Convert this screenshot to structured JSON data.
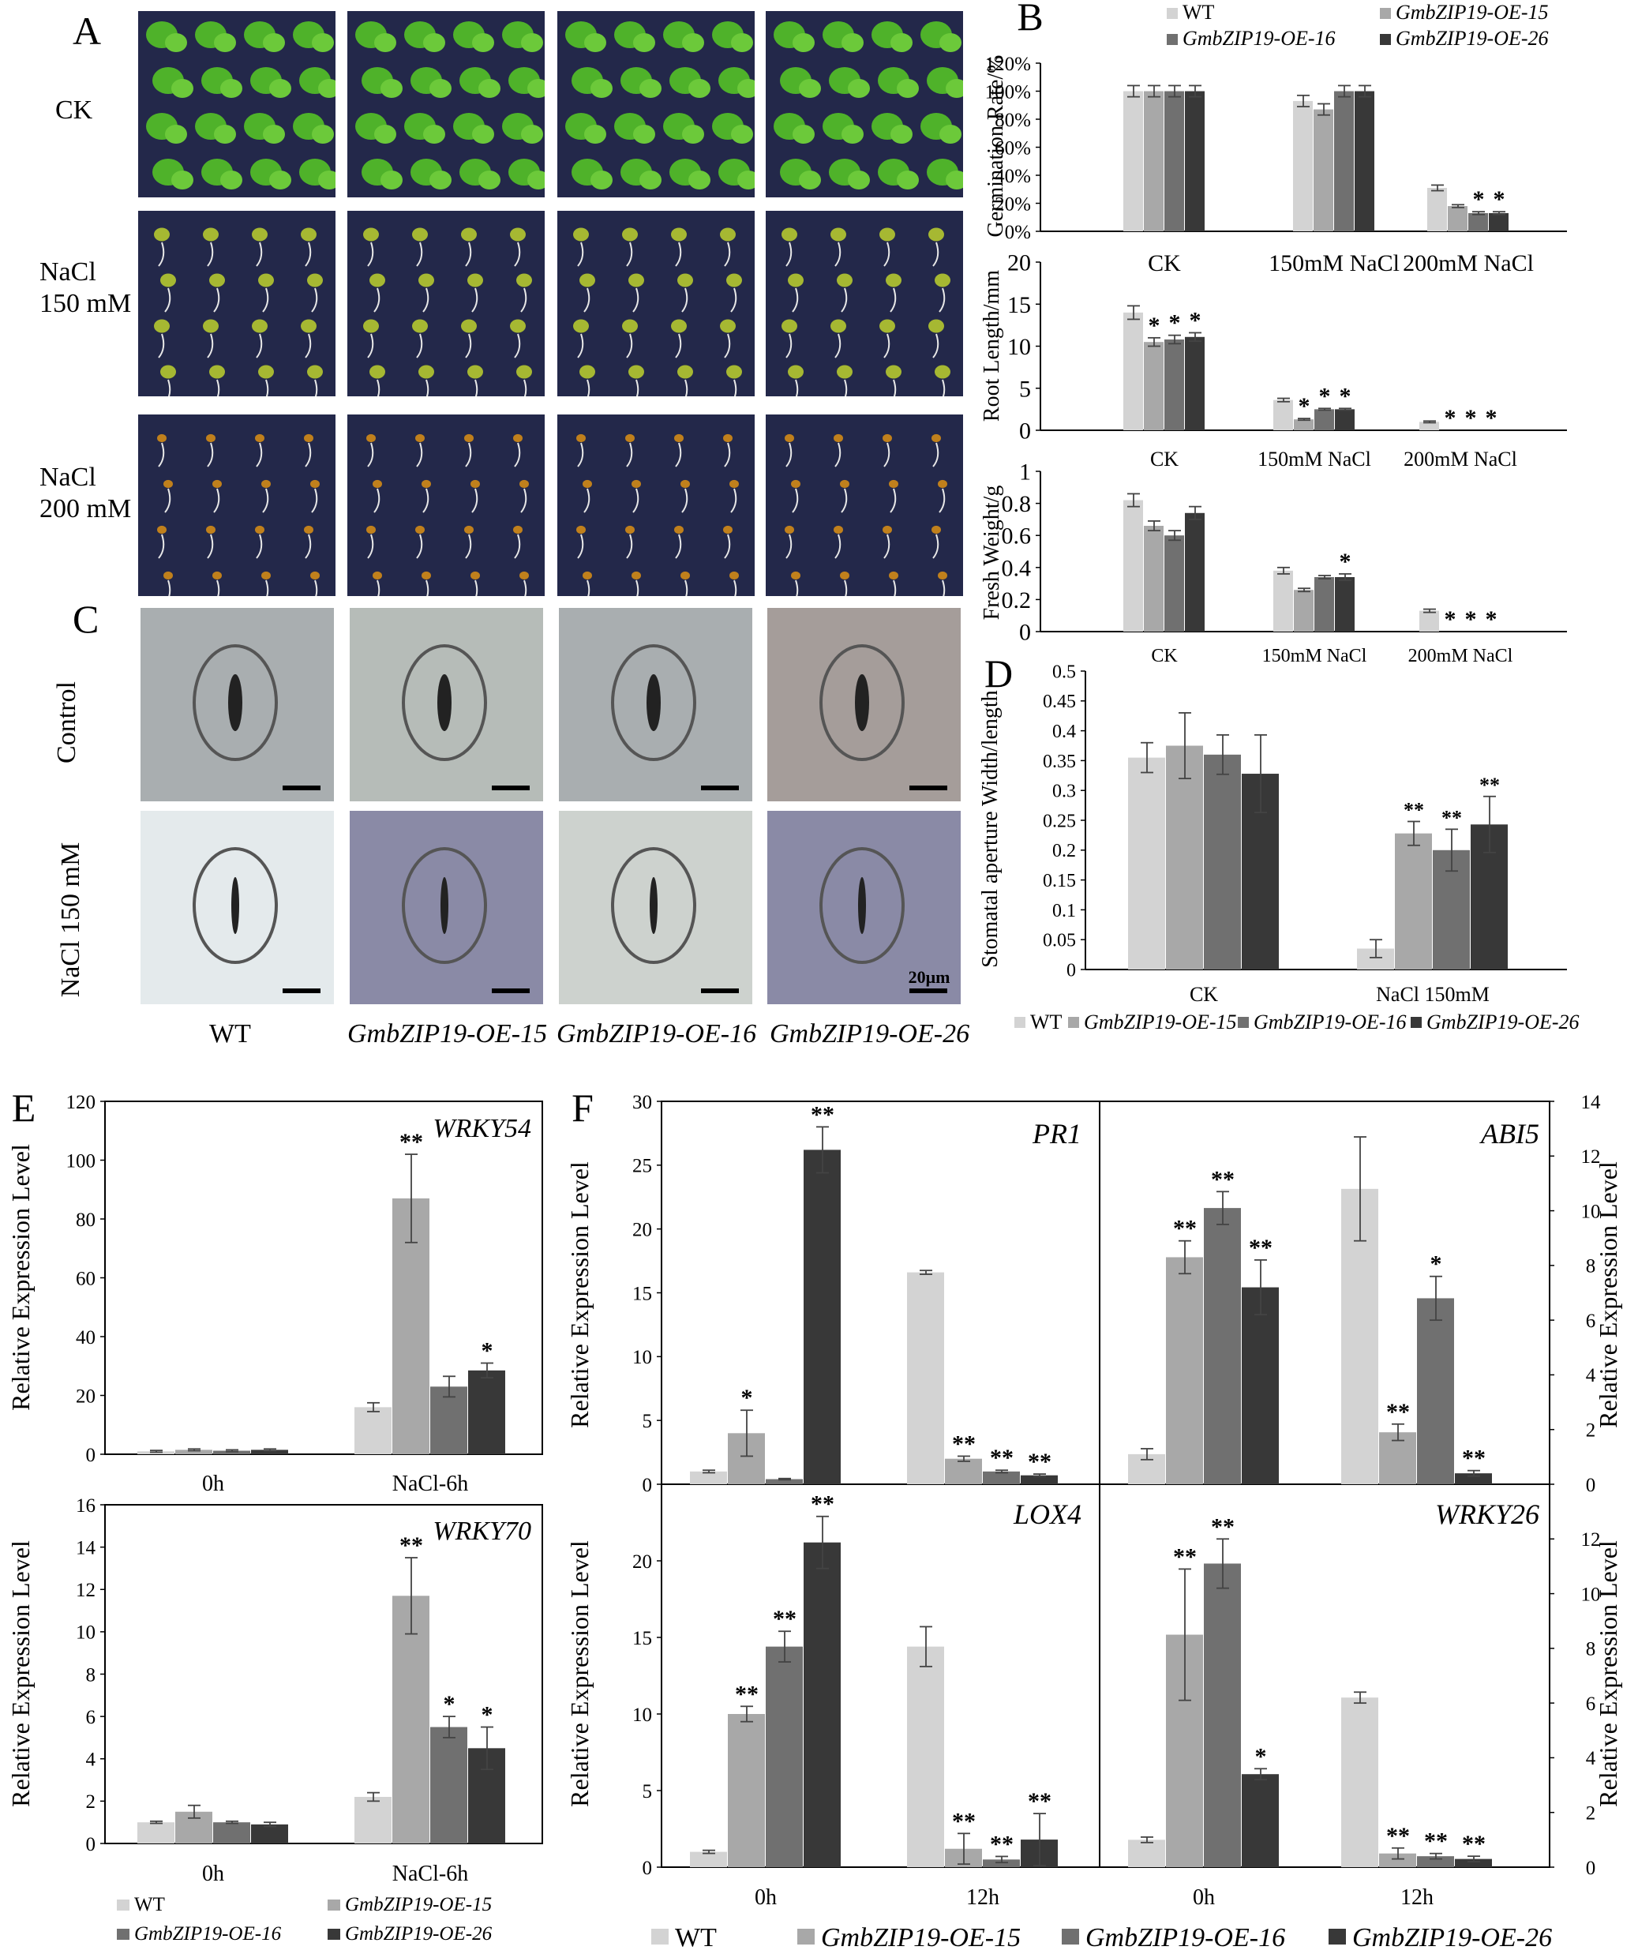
{
  "colors": {
    "wt": "#d3d3d3",
    "oe15": "#a8a8a8",
    "oe16": "#707070",
    "oe26": "#383838",
    "seedbg": "#23284a",
    "stomabg": "#a9aeb0",
    "stomabg2": "#a59d9a",
    "stomabg3": "#8a8aa6",
    "stomabg4": "#e4eaec"
  },
  "panelA": {
    "label": "A",
    "rows": [
      "CK",
      "NaCl\n150 mM",
      "NaCl\n200 mM"
    ]
  },
  "panelC": {
    "label": "C",
    "rows": [
      "Control",
      "NaCl 150 mM"
    ],
    "scalebar": "20μm",
    "cols": [
      "WT",
      "GmbZIP19-OE-15",
      "GmbZIP19-OE-16",
      "GmbZIP19-OE-26"
    ]
  },
  "legendB": {
    "label": "B",
    "items": [
      "WT",
      "GmbZIP19-OE-15",
      "GmbZIP19-OE-16",
      "GmbZIP19-OE-26"
    ]
  },
  "legendD": {
    "items": [
      "WT",
      "GmbZIP19-OE-15",
      "GmbZIP19-OE-16",
      "GmbZIP19-OE-26"
    ]
  },
  "legendE": {
    "items": [
      "WT",
      "GmbZIP19-OE-15",
      "GmbZIP19-OE-16",
      "GmbZIP19-OE-26"
    ]
  },
  "legendF": {
    "items": [
      "WT",
      "GmbZIP19-OE-15",
      "GmbZIP19-OE-16",
      "GmbZIP19-OE-26"
    ]
  },
  "chart_data": [
    {
      "id": "germ",
      "type": "bar",
      "ylabel": "Germination Rate/%",
      "ylim": [
        0,
        120
      ],
      "percent": true,
      "yticks": [
        0,
        20,
        40,
        60,
        80,
        100,
        120
      ],
      "categories": [
        "CK",
        "150mM NaCl",
        "200mM NaCl"
      ],
      "series": [
        {
          "name": "WT",
          "values": [
            100,
            93,
            31
          ],
          "err": [
            4,
            4,
            2
          ],
          "sig": [
            "",
            "",
            ""
          ]
        },
        {
          "name": "GmbZIP19-OE-15",
          "values": [
            100,
            87,
            18
          ],
          "err": [
            4,
            4,
            1
          ],
          "sig": [
            "",
            "",
            ""
          ]
        },
        {
          "name": "GmbZIP19-OE-16",
          "values": [
            100,
            100,
            13
          ],
          "err": [
            4,
            4,
            1
          ],
          "sig": [
            "",
            "",
            "*"
          ]
        },
        {
          "name": "GmbZIP19-OE-26",
          "values": [
            100,
            100,
            13
          ],
          "err": [
            4,
            4,
            1
          ],
          "sig": [
            "",
            "",
            "*"
          ]
        }
      ]
    },
    {
      "id": "root",
      "type": "bar",
      "ylabel": "Root Length/mm",
      "ylim": [
        0,
        20
      ],
      "yticks": [
        0,
        5,
        10,
        15,
        20
      ],
      "categories": [
        "CK",
        "150mM NaCl",
        "200mM NaCl"
      ],
      "series": [
        {
          "name": "WT",
          "values": [
            14,
            3.6,
            1
          ],
          "err": [
            0.8,
            0.2,
            0.1
          ],
          "sig": [
            "",
            "",
            ""
          ]
        },
        {
          "name": "GmbZIP19-OE-15",
          "values": [
            10.5,
            1.3,
            0
          ],
          "err": [
            0.5,
            0.1,
            0
          ],
          "sig": [
            "*",
            "*",
            "*"
          ]
        },
        {
          "name": "GmbZIP19-OE-16",
          "values": [
            10.8,
            2.5,
            0
          ],
          "err": [
            0.5,
            0.1,
            0
          ],
          "sig": [
            "*",
            "*",
            "*"
          ]
        },
        {
          "name": "GmbZIP19-OE-26",
          "values": [
            11.1,
            2.5,
            0
          ],
          "err": [
            0.5,
            0.1,
            0
          ],
          "sig": [
            "*",
            "*",
            "*"
          ]
        }
      ]
    },
    {
      "id": "fw",
      "type": "bar",
      "ylabel": "Fresh Weight/g",
      "ylim": [
        0,
        1
      ],
      "yticks": [
        0,
        0.2,
        0.4,
        0.6,
        0.8,
        1
      ],
      "categories": [
        "CK",
        "150mM NaCl",
        "200mM NaCl"
      ],
      "series": [
        {
          "name": "WT",
          "values": [
            0.82,
            0.38,
            0.13
          ],
          "err": [
            0.04,
            0.02,
            0.01
          ],
          "sig": [
            "",
            "",
            ""
          ]
        },
        {
          "name": "GmbZIP19-OE-15",
          "values": [
            0.66,
            0.26,
            0
          ],
          "err": [
            0.03,
            0.01,
            0
          ],
          "sig": [
            "",
            "",
            "*"
          ]
        },
        {
          "name": "GmbZIP19-OE-16",
          "values": [
            0.6,
            0.34,
            0
          ],
          "err": [
            0.03,
            0.01,
            0
          ],
          "sig": [
            "",
            "",
            "*"
          ]
        },
        {
          "name": "GmbZIP19-OE-26",
          "values": [
            0.74,
            0.34,
            0
          ],
          "err": [
            0.04,
            0.02,
            0
          ],
          "sig": [
            "",
            "*",
            "*"
          ]
        }
      ]
    },
    {
      "id": "stoma",
      "type": "bar",
      "label": "D",
      "ylabel": "Stomatal aperture Width/length",
      "ylim": [
        0,
        0.5
      ],
      "yticks": [
        0,
        0.05,
        0.1,
        0.15,
        0.2,
        0.25,
        0.3,
        0.35,
        0.4,
        0.45,
        0.5
      ],
      "categories": [
        "CK",
        "NaCl 150mM"
      ],
      "series": [
        {
          "name": "WT",
          "values": [
            0.355,
            0.035
          ],
          "err": [
            0.025,
            0.015
          ],
          "sig": [
            "",
            ""
          ]
        },
        {
          "name": "GmbZIP19-OE-15",
          "values": [
            0.375,
            0.228
          ],
          "err": [
            0.055,
            0.02
          ],
          "sig": [
            "",
            "**"
          ]
        },
        {
          "name": "GmbZIP19-OE-16",
          "values": [
            0.36,
            0.2
          ],
          "err": [
            0.033,
            0.035
          ],
          "sig": [
            "",
            "**"
          ]
        },
        {
          "name": "GmbZIP19-OE-26",
          "values": [
            0.328,
            0.243
          ],
          "err": [
            0.065,
            0.047
          ],
          "sig": [
            "",
            "**"
          ]
        }
      ]
    },
    {
      "id": "wrky54",
      "type": "bar",
      "label": "E",
      "title": "WRKY54",
      "ylabel": "Relative Expression Level",
      "ylim": [
        0,
        120
      ],
      "yticks": [
        0,
        20,
        40,
        60,
        80,
        100,
        120
      ],
      "categories": [
        "0h",
        "NaCl-6h"
      ],
      "series": [
        {
          "name": "WT",
          "values": [
            1,
            16
          ],
          "err": [
            0.3,
            1.5
          ],
          "sig": [
            "",
            ""
          ]
        },
        {
          "name": "GmbZIP19-OE-15",
          "values": [
            1.5,
            87
          ],
          "err": [
            0.3,
            15
          ],
          "sig": [
            "",
            "**"
          ]
        },
        {
          "name": "GmbZIP19-OE-16",
          "values": [
            1.2,
            23
          ],
          "err": [
            0.3,
            3.5
          ],
          "sig": [
            "",
            ""
          ]
        },
        {
          "name": "GmbZIP19-OE-26",
          "values": [
            1.5,
            28.5
          ],
          "err": [
            0.3,
            2.5
          ],
          "sig": [
            "",
            "*"
          ]
        }
      ]
    },
    {
      "id": "wrky70",
      "type": "bar",
      "title": "WRKY70",
      "ylabel": "Relative Expression Level",
      "ylim": [
        0,
        16
      ],
      "yticks": [
        0,
        2,
        4,
        6,
        8,
        10,
        12,
        14,
        16
      ],
      "categories": [
        "0h",
        "NaCl-6h"
      ],
      "series": [
        {
          "name": "WT",
          "values": [
            1,
            2.2
          ],
          "err": [
            0.05,
            0.2
          ],
          "sig": [
            "",
            ""
          ]
        },
        {
          "name": "GmbZIP19-OE-15",
          "values": [
            1.5,
            11.7
          ],
          "err": [
            0.3,
            1.8
          ],
          "sig": [
            "",
            "**"
          ]
        },
        {
          "name": "GmbZIP19-OE-16",
          "values": [
            1,
            5.5
          ],
          "err": [
            0.05,
            0.5
          ],
          "sig": [
            "",
            "*"
          ]
        },
        {
          "name": "GmbZIP19-OE-26",
          "values": [
            0.9,
            4.5
          ],
          "err": [
            0.1,
            1
          ],
          "sig": [
            "",
            "*"
          ]
        }
      ]
    },
    {
      "id": "pr1",
      "type": "bar",
      "label": "F",
      "title": "PR1",
      "ylabel": "Relative Expression Level",
      "ylim": [
        0,
        30
      ],
      "yticks": [
        0,
        5,
        10,
        15,
        20,
        25,
        30
      ],
      "categories": [
        "0h",
        "12h"
      ],
      "series": [
        {
          "name": "WT",
          "values": [
            1,
            16.6
          ],
          "err": [
            0.1,
            0.15
          ],
          "sig": [
            "",
            ""
          ]
        },
        {
          "name": "GmbZIP19-OE-15",
          "values": [
            4,
            2
          ],
          "err": [
            1.8,
            0.2
          ],
          "sig": [
            "*",
            "**"
          ]
        },
        {
          "name": "GmbZIP19-OE-16",
          "values": [
            0.4,
            1
          ],
          "err": [
            0.05,
            0.1
          ],
          "sig": [
            "",
            "**"
          ]
        },
        {
          "name": "GmbZIP19-OE-26",
          "values": [
            26.2,
            0.7
          ],
          "err": [
            1.8,
            0.1
          ],
          "sig": [
            "**",
            "**"
          ]
        }
      ]
    },
    {
      "id": "abi5",
      "type": "bar",
      "title": "ABI5",
      "ylabel": "Relative Expression Level",
      "ylim": [
        0,
        14
      ],
      "yticks": [
        0,
        2,
        4,
        6,
        8,
        10,
        12,
        14
      ],
      "categories": [
        "0h",
        "12h"
      ],
      "series": [
        {
          "name": "WT",
          "values": [
            1.1,
            10.8
          ],
          "err": [
            0.2,
            1.9
          ],
          "sig": [
            "",
            ""
          ]
        },
        {
          "name": "GmbZIP19-OE-15",
          "values": [
            8.3,
            1.9
          ],
          "err": [
            0.6,
            0.3
          ],
          "sig": [
            "**",
            "**"
          ]
        },
        {
          "name": "GmbZIP19-OE-16",
          "values": [
            10.1,
            6.8
          ],
          "err": [
            0.6,
            0.8
          ],
          "sig": [
            "**",
            "*"
          ]
        },
        {
          "name": "GmbZIP19-OE-26",
          "values": [
            7.2,
            0.4
          ],
          "err": [
            1,
            0.1
          ],
          "sig": [
            "**",
            "**"
          ]
        }
      ]
    },
    {
      "id": "lox4",
      "type": "bar",
      "title": "LOX4",
      "ylabel": "Relative Expression Level",
      "ylim": [
        0,
        25
      ],
      "yticks": [
        0,
        5,
        10,
        15,
        20
      ],
      "categories": [
        "0h",
        "12h"
      ],
      "series": [
        {
          "name": "WT",
          "values": [
            1,
            14.4
          ],
          "err": [
            0.1,
            1.3
          ],
          "sig": [
            "",
            ""
          ]
        },
        {
          "name": "GmbZIP19-OE-15",
          "values": [
            10,
            1.2
          ],
          "err": [
            0.5,
            1
          ],
          "sig": [
            "**",
            "**"
          ]
        },
        {
          "name": "GmbZIP19-OE-16",
          "values": [
            14.4,
            0.5
          ],
          "err": [
            1,
            0.2
          ],
          "sig": [
            "**",
            "**"
          ]
        },
        {
          "name": "GmbZIP19-OE-26",
          "values": [
            21.2,
            1.8
          ],
          "err": [
            1.7,
            1.7
          ],
          "sig": [
            "**",
            "**"
          ]
        }
      ]
    },
    {
      "id": "wrky26",
      "type": "bar",
      "title": "WRKY26",
      "ylabel": "Relative Expression Level",
      "ylim": [
        0,
        14
      ],
      "yticks": [
        0,
        2,
        4,
        6,
        8,
        10,
        12
      ],
      "categories": [
        "0h",
        "12h"
      ],
      "series": [
        {
          "name": "WT",
          "values": [
            1,
            6.2
          ],
          "err": [
            0.1,
            0.2
          ],
          "sig": [
            "",
            ""
          ]
        },
        {
          "name": "GmbZIP19-OE-15",
          "values": [
            8.5,
            0.5
          ],
          "err": [
            2.4,
            0.2
          ],
          "sig": [
            "**",
            "**"
          ]
        },
        {
          "name": "GmbZIP19-OE-16",
          "values": [
            11.1,
            0.4
          ],
          "err": [
            0.9,
            0.1
          ],
          "sig": [
            "**",
            "**"
          ]
        },
        {
          "name": "GmbZIP19-OE-26",
          "values": [
            3.4,
            0.3
          ],
          "err": [
            0.2,
            0.1
          ],
          "sig": [
            "*",
            "**"
          ]
        }
      ]
    }
  ]
}
